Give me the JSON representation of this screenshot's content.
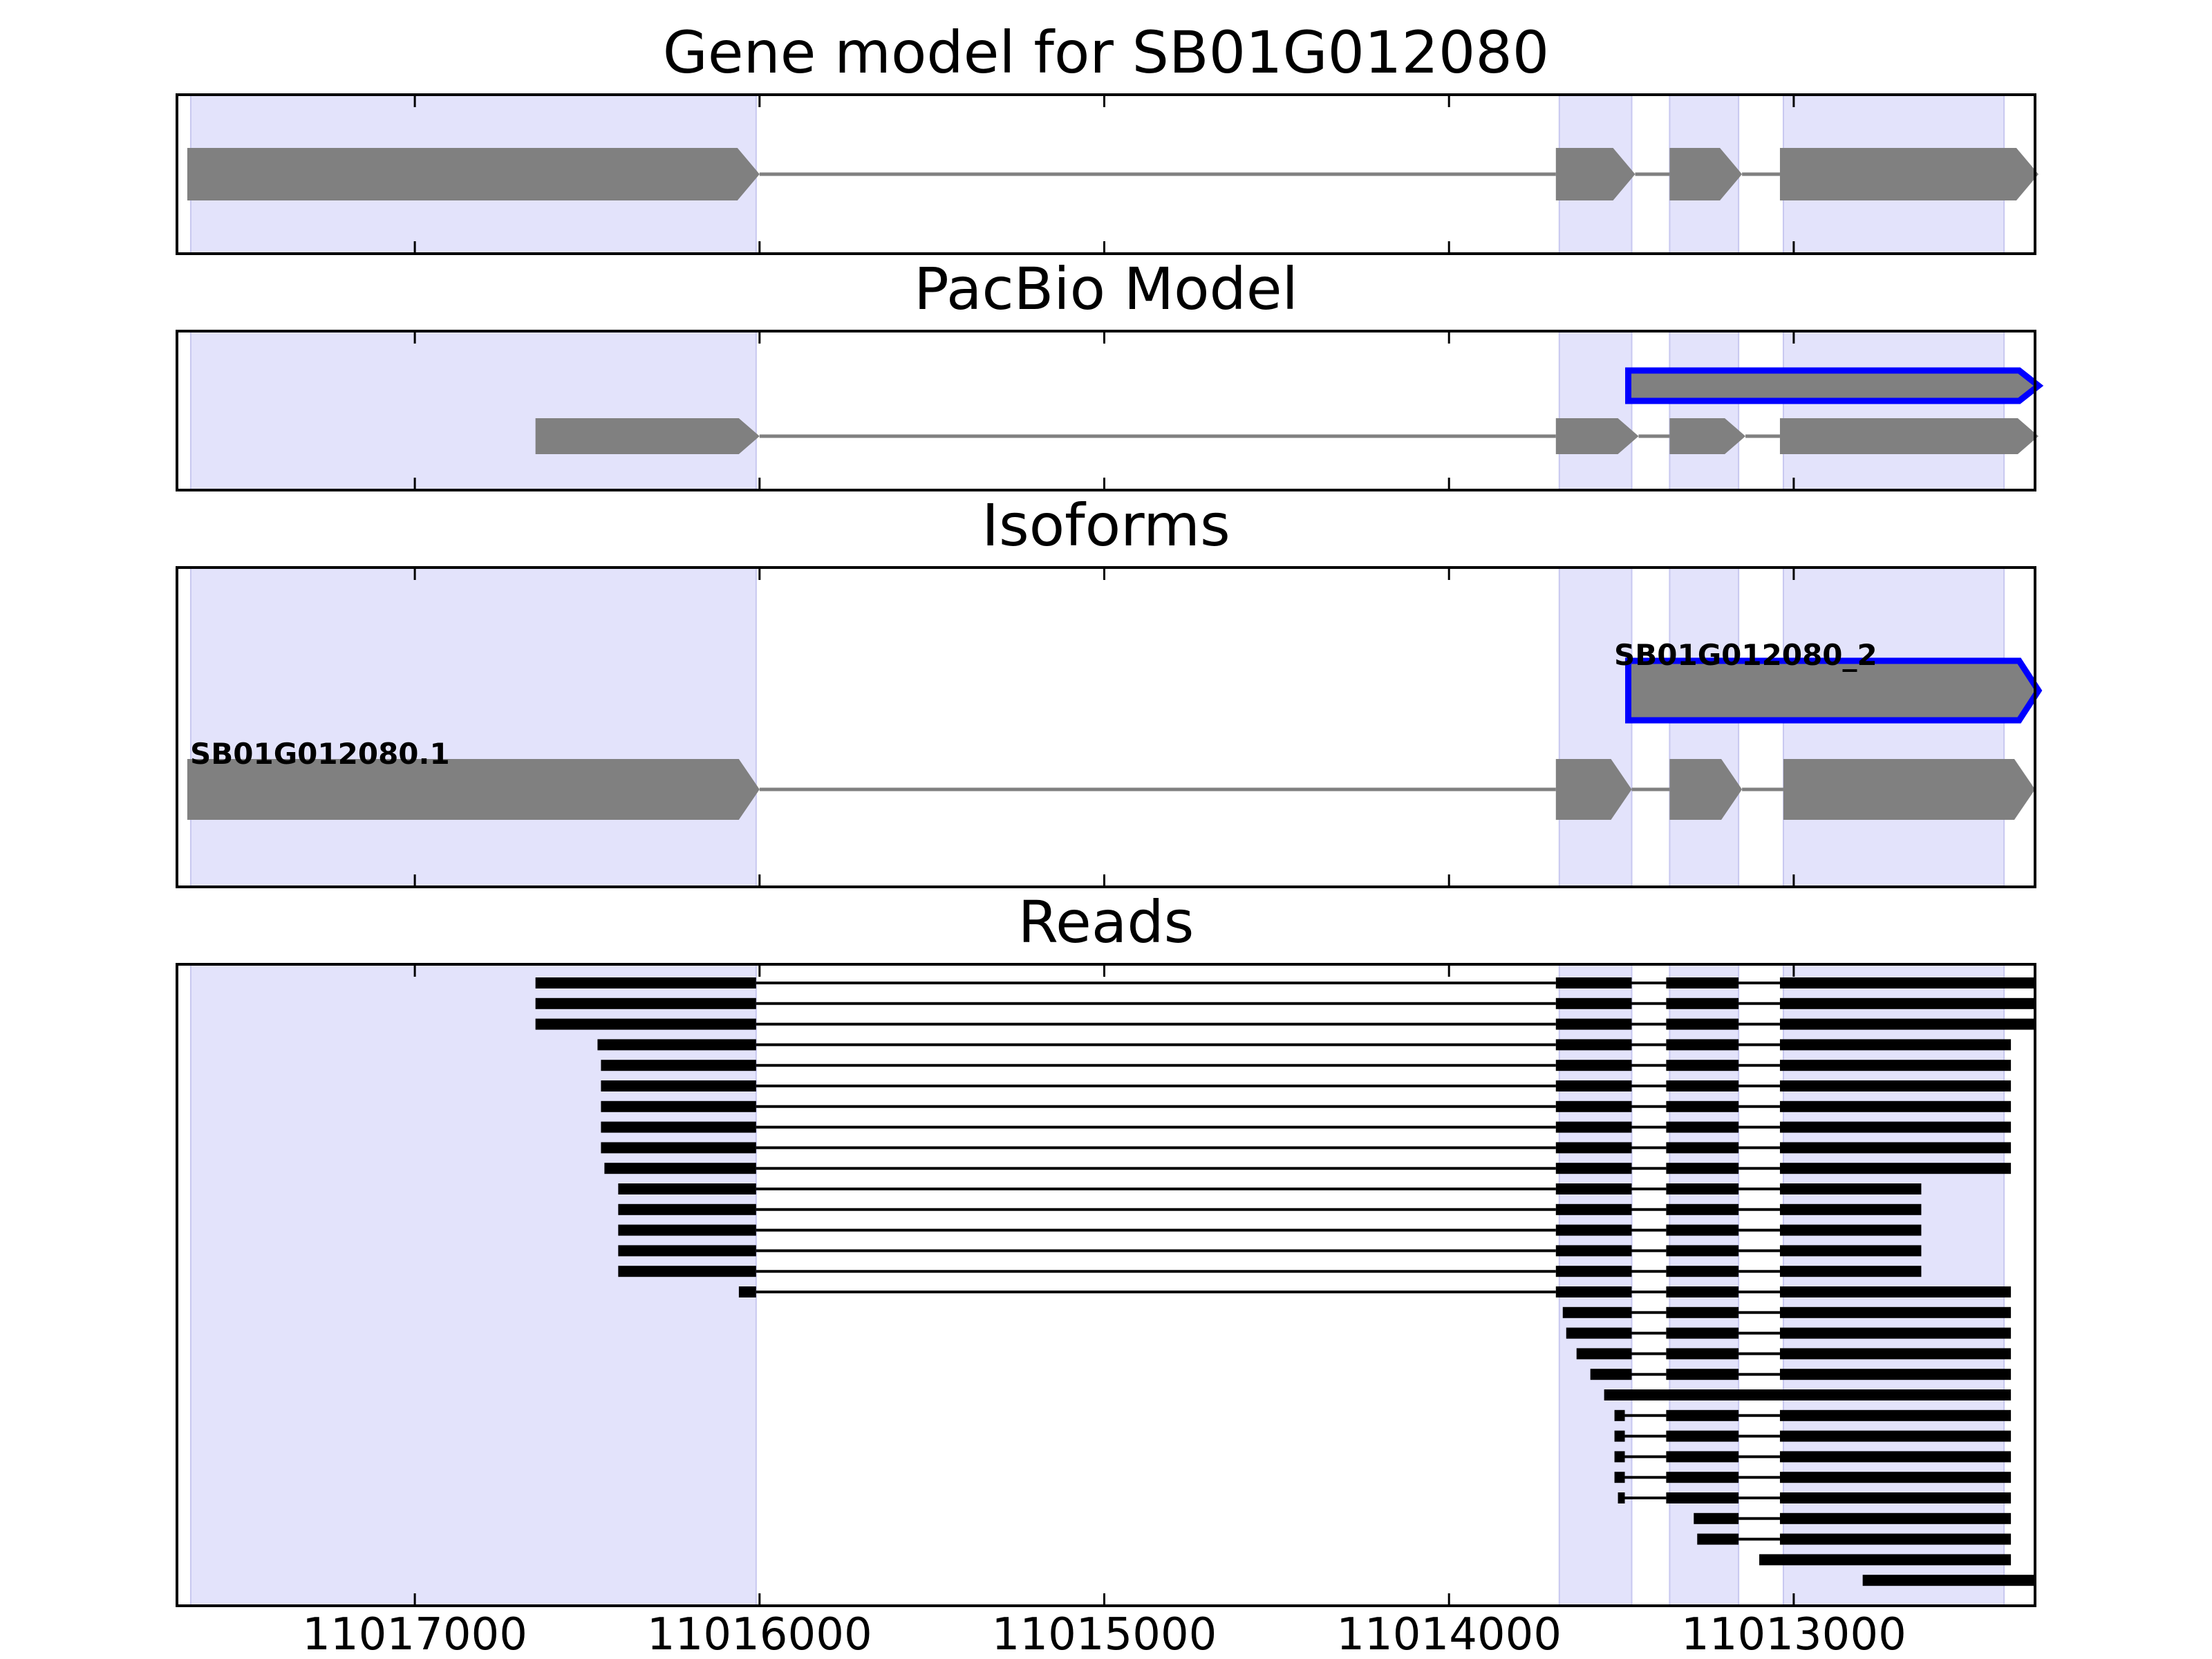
{
  "chart_data": {
    "type": "gene-structure",
    "x_axis": {
      "reversed": true,
      "xlim": [
        11017690,
        11012300
      ],
      "ticks": [
        11017000,
        11016000,
        11015000,
        11014000,
        11013000
      ],
      "tick_labels": [
        "11017000",
        "11016000",
        "11015000",
        "11014000",
        "11013000"
      ]
    },
    "highlight_regions": [
      [
        11017650,
        11016010
      ],
      [
        11013680,
        11013470
      ],
      [
        11013360,
        11013160
      ],
      [
        11013030,
        11012390
      ]
    ],
    "colors": {
      "exon": "#808080",
      "intron": "#808080",
      "highlight": "#e3e3fb",
      "selected_outline": "#0000ff",
      "read": "#000000"
    },
    "panels": [
      {
        "title": "Gene model for SB01G012080",
        "tracks": [
          {
            "label": "",
            "exons": [
              [
                11017660,
                11016000
              ],
              [
                11013690,
                11013460
              ],
              [
                11013360,
                11013150
              ],
              [
                11013040,
                11012290
              ]
            ],
            "outlined": false
          }
        ]
      },
      {
        "title": "PacBio Model",
        "tracks": [
          {
            "label": "",
            "exons": [
              [
                11013480,
                11012290
              ]
            ],
            "outlined": true
          },
          {
            "label": "",
            "exons": [
              [
                11016650,
                11016000
              ],
              [
                11013690,
                11013450
              ],
              [
                11013360,
                11013140
              ],
              [
                11013040,
                11012290
              ]
            ],
            "outlined": false
          }
        ]
      },
      {
        "title": "Isoforms",
        "tracks": [
          {
            "label": "SB01G012080_2",
            "exons": [
              [
                11013480,
                11012290
              ]
            ],
            "outlined": true
          },
          {
            "label": "SB01G012080.1",
            "exons": [
              [
                11017660,
                11016000
              ],
              [
                11013690,
                11013470
              ],
              [
                11013360,
                11013150
              ],
              [
                11013030,
                11012300
              ]
            ],
            "outlined": false
          }
        ]
      },
      {
        "title": "Reads",
        "reads": [
          [
            [
              11016650,
              11016010
            ],
            [
              11013690,
              11013470
            ],
            [
              11013370,
              11013160
            ],
            [
              11013040,
              11012300
            ]
          ],
          [
            [
              11016650,
              11016010
            ],
            [
              11013690,
              11013470
            ],
            [
              11013370,
              11013160
            ],
            [
              11013040,
              11012300
            ]
          ],
          [
            [
              11016650,
              11016010
            ],
            [
              11013690,
              11013470
            ],
            [
              11013370,
              11013160
            ],
            [
              11013040,
              11012300
            ]
          ],
          [
            [
              11016470,
              11016010
            ],
            [
              11013690,
              11013470
            ],
            [
              11013370,
              11013160
            ],
            [
              11013040,
              11012370
            ]
          ],
          [
            [
              11016460,
              11016010
            ],
            [
              11013690,
              11013470
            ],
            [
              11013370,
              11013160
            ],
            [
              11013040,
              11012370
            ]
          ],
          [
            [
              11016460,
              11016010
            ],
            [
              11013690,
              11013470
            ],
            [
              11013370,
              11013160
            ],
            [
              11013040,
              11012370
            ]
          ],
          [
            [
              11016460,
              11016010
            ],
            [
              11013690,
              11013470
            ],
            [
              11013370,
              11013160
            ],
            [
              11013040,
              11012370
            ]
          ],
          [
            [
              11016460,
              11016010
            ],
            [
              11013690,
              11013470
            ],
            [
              11013370,
              11013160
            ],
            [
              11013040,
              11012370
            ]
          ],
          [
            [
              11016460,
              11016010
            ],
            [
              11013690,
              11013470
            ],
            [
              11013370,
              11013160
            ],
            [
              11013040,
              11012370
            ]
          ],
          [
            [
              11016450,
              11016010
            ],
            [
              11013690,
              11013470
            ],
            [
              11013370,
              11013160
            ],
            [
              11013040,
              11012370
            ]
          ],
          [
            [
              11016410,
              11016010
            ],
            [
              11013690,
              11013470
            ],
            [
              11013370,
              11013160
            ],
            [
              11013040,
              11012630
            ]
          ],
          [
            [
              11016410,
              11016010
            ],
            [
              11013690,
              11013470
            ],
            [
              11013370,
              11013160
            ],
            [
              11013040,
              11012630
            ]
          ],
          [
            [
              11016410,
              11016010
            ],
            [
              11013690,
              11013470
            ],
            [
              11013370,
              11013160
            ],
            [
              11013040,
              11012630
            ]
          ],
          [
            [
              11016410,
              11016010
            ],
            [
              11013690,
              11013470
            ],
            [
              11013370,
              11013160
            ],
            [
              11013040,
              11012630
            ]
          ],
          [
            [
              11016410,
              11016010
            ],
            [
              11013690,
              11013470
            ],
            [
              11013370,
              11013160
            ],
            [
              11013040,
              11012630
            ]
          ],
          [
            [
              11016060,
              11016010
            ],
            [
              11013690,
              11013470
            ],
            [
              11013370,
              11013160
            ],
            [
              11013040,
              11012370
            ]
          ],
          [
            [
              11013670,
              11013470
            ],
            [
              11013370,
              11013160
            ],
            [
              11013040,
              11012370
            ]
          ],
          [
            [
              11013660,
              11013470
            ],
            [
              11013370,
              11013160
            ],
            [
              11013040,
              11012370
            ]
          ],
          [
            [
              11013630,
              11013470
            ],
            [
              11013370,
              11013160
            ],
            [
              11013040,
              11012370
            ]
          ],
          [
            [
              11013590,
              11013470
            ],
            [
              11013370,
              11013160
            ],
            [
              11013040,
              11012370
            ]
          ],
          [
            [
              11013550,
              11012370
            ]
          ],
          [
            [
              11013520,
              11013490
            ],
            [
              11013370,
              11013160
            ],
            [
              11013040,
              11012370
            ]
          ],
          [
            [
              11013520,
              11013490
            ],
            [
              11013370,
              11013160
            ],
            [
              11013040,
              11012370
            ]
          ],
          [
            [
              11013520,
              11013490
            ],
            [
              11013370,
              11013160
            ],
            [
              11013040,
              11012370
            ]
          ],
          [
            [
              11013520,
              11013490
            ],
            [
              11013370,
              11013160
            ],
            [
              11013040,
              11012370
            ]
          ],
          [
            [
              11013510,
              11013490
            ],
            [
              11013370,
              11013160
            ],
            [
              11013040,
              11012370
            ]
          ],
          [
            [
              11013290,
              11013160
            ],
            [
              11013040,
              11012370
            ]
          ],
          [
            [
              11013280,
              11013160
            ],
            [
              11013040,
              11012370
            ]
          ],
          [
            [
              11013100,
              11012370
            ]
          ],
          [
            [
              11012800,
              11012300
            ]
          ]
        ]
      }
    ]
  }
}
